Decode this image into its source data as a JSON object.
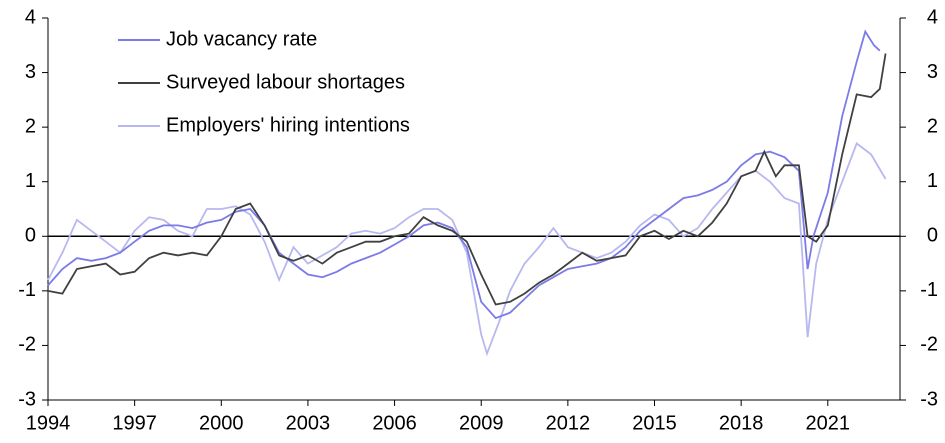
{
  "chart_data": {
    "type": "line",
    "xlim": [
      1994,
      2023.5
    ],
    "xticks": [
      1994,
      1997,
      2000,
      2003,
      2006,
      2009,
      2012,
      2015,
      2018,
      2021
    ],
    "ylim": [
      -3,
      4
    ],
    "yticks": [
      -3,
      -2,
      -1,
      0,
      1,
      2,
      3,
      4
    ],
    "y2lim": [
      -3,
      4
    ],
    "y2ticks": [
      -3,
      -2,
      -1,
      0,
      1,
      2,
      3,
      4
    ],
    "legend": "upper-left",
    "series": [
      {
        "name": "Job vacancy rate",
        "color": "#7b7be8",
        "x": [
          1994,
          1994.5,
          1995,
          1995.5,
          1996,
          1996.5,
          1997,
          1997.5,
          1998,
          1998.5,
          1999,
          1999.5,
          2000,
          2000.5,
          2001,
          2001.5,
          2002,
          2002.5,
          2003,
          2003.5,
          2004,
          2004.5,
          2005,
          2005.5,
          2006,
          2006.5,
          2007,
          2007.5,
          2008,
          2008.5,
          2009,
          2009.5,
          2010,
          2010.5,
          2011,
          2011.5,
          2012,
          2012.5,
          2013,
          2013.5,
          2014,
          2014.5,
          2015,
          2015.5,
          2016,
          2016.5,
          2017,
          2017.5,
          2018,
          2018.5,
          2019,
          2019.5,
          2020,
          2020.3,
          2020.5,
          2021,
          2021.5,
          2022,
          2022.3,
          2022.6,
          2022.8
        ],
        "values": [
          -0.9,
          -0.6,
          -0.4,
          -0.45,
          -0.4,
          -0.3,
          -0.1,
          0.1,
          0.2,
          0.2,
          0.15,
          0.25,
          0.3,
          0.45,
          0.5,
          0.2,
          -0.3,
          -0.5,
          -0.7,
          -0.75,
          -0.65,
          -0.5,
          -0.4,
          -0.3,
          -0.15,
          0.0,
          0.2,
          0.25,
          0.15,
          -0.2,
          -1.2,
          -1.5,
          -1.4,
          -1.15,
          -0.9,
          -0.75,
          -0.6,
          -0.55,
          -0.5,
          -0.4,
          -0.2,
          0.1,
          0.3,
          0.5,
          0.7,
          0.75,
          0.85,
          1.0,
          1.3,
          1.5,
          1.55,
          1.45,
          1.2,
          -0.6,
          0.0,
          0.8,
          2.2,
          3.2,
          3.75,
          3.5,
          3.4
        ]
      },
      {
        "name": "Surveyed labour shortages",
        "color": "#404040",
        "x": [
          1994,
          1994.5,
          1995,
          1995.5,
          1996,
          1996.5,
          1997,
          1997.5,
          1998,
          1998.5,
          1999,
          1999.5,
          2000,
          2000.5,
          2001,
          2001.5,
          2002,
          2002.5,
          2003,
          2003.5,
          2004,
          2004.5,
          2005,
          2005.5,
          2006,
          2006.5,
          2007,
          2007.5,
          2008,
          2008.5,
          2009,
          2009.5,
          2010,
          2010.5,
          2011,
          2011.5,
          2012,
          2012.5,
          2013,
          2013.5,
          2014,
          2014.5,
          2015,
          2015.5,
          2016,
          2016.5,
          2017,
          2017.5,
          2018,
          2018.5,
          2018.8,
          2019.2,
          2019.5,
          2020,
          2020.3,
          2020.6,
          2021,
          2021.5,
          2022,
          2022.5,
          2022.8,
          2023
        ],
        "values": [
          -1.0,
          -1.05,
          -0.6,
          -0.55,
          -0.5,
          -0.7,
          -0.65,
          -0.4,
          -0.3,
          -0.35,
          -0.3,
          -0.35,
          0.0,
          0.5,
          0.6,
          0.2,
          -0.35,
          -0.45,
          -0.35,
          -0.5,
          -0.3,
          -0.2,
          -0.1,
          -0.1,
          0.0,
          0.05,
          0.35,
          0.2,
          0.1,
          -0.1,
          -0.7,
          -1.25,
          -1.2,
          -1.05,
          -0.85,
          -0.7,
          -0.5,
          -0.3,
          -0.45,
          -0.4,
          -0.35,
          0.0,
          0.1,
          -0.05,
          0.1,
          0.0,
          0.25,
          0.6,
          1.1,
          1.2,
          1.55,
          1.1,
          1.3,
          1.3,
          0.0,
          -0.1,
          0.2,
          1.5,
          2.6,
          2.55,
          2.7,
          3.35
        ]
      },
      {
        "name": "Employers' hiring intentions",
        "color": "#b8b8f0",
        "x": [
          1994,
          1994.5,
          1995,
          1995.5,
          1996,
          1996.5,
          1997,
          1997.5,
          1998,
          1998.5,
          1999,
          1999.5,
          2000,
          2000.5,
          2001,
          2001.5,
          2002,
          2002.5,
          2003,
          2003.5,
          2004,
          2004.5,
          2005,
          2005.5,
          2006,
          2006.5,
          2007,
          2007.5,
          2008,
          2008.5,
          2009,
          2009.2,
          2009.6,
          2010,
          2010.5,
          2011,
          2011.5,
          2012,
          2012.5,
          2013,
          2013.5,
          2014,
          2014.5,
          2015,
          2015.5,
          2016,
          2016.5,
          2017,
          2017.5,
          2018,
          2018.5,
          2019,
          2019.5,
          2020,
          2020.3,
          2020.6,
          2021,
          2021.5,
          2022,
          2022.5,
          2023
        ],
        "values": [
          -0.8,
          -0.3,
          0.3,
          0.1,
          -0.1,
          -0.3,
          0.1,
          0.35,
          0.3,
          0.1,
          0.0,
          0.5,
          0.5,
          0.55,
          0.4,
          -0.1,
          -0.8,
          -0.2,
          -0.5,
          -0.35,
          -0.2,
          0.05,
          0.1,
          0.05,
          0.15,
          0.35,
          0.5,
          0.5,
          0.3,
          -0.3,
          -1.8,
          -2.15,
          -1.6,
          -1.0,
          -0.5,
          -0.2,
          0.15,
          -0.2,
          -0.3,
          -0.4,
          -0.3,
          -0.1,
          0.2,
          0.4,
          0.3,
          0.0,
          0.15,
          0.5,
          0.8,
          1.1,
          1.2,
          1.0,
          0.7,
          0.6,
          -1.85,
          -0.5,
          0.3,
          1.0,
          1.7,
          1.5,
          1.05
        ]
      }
    ]
  }
}
